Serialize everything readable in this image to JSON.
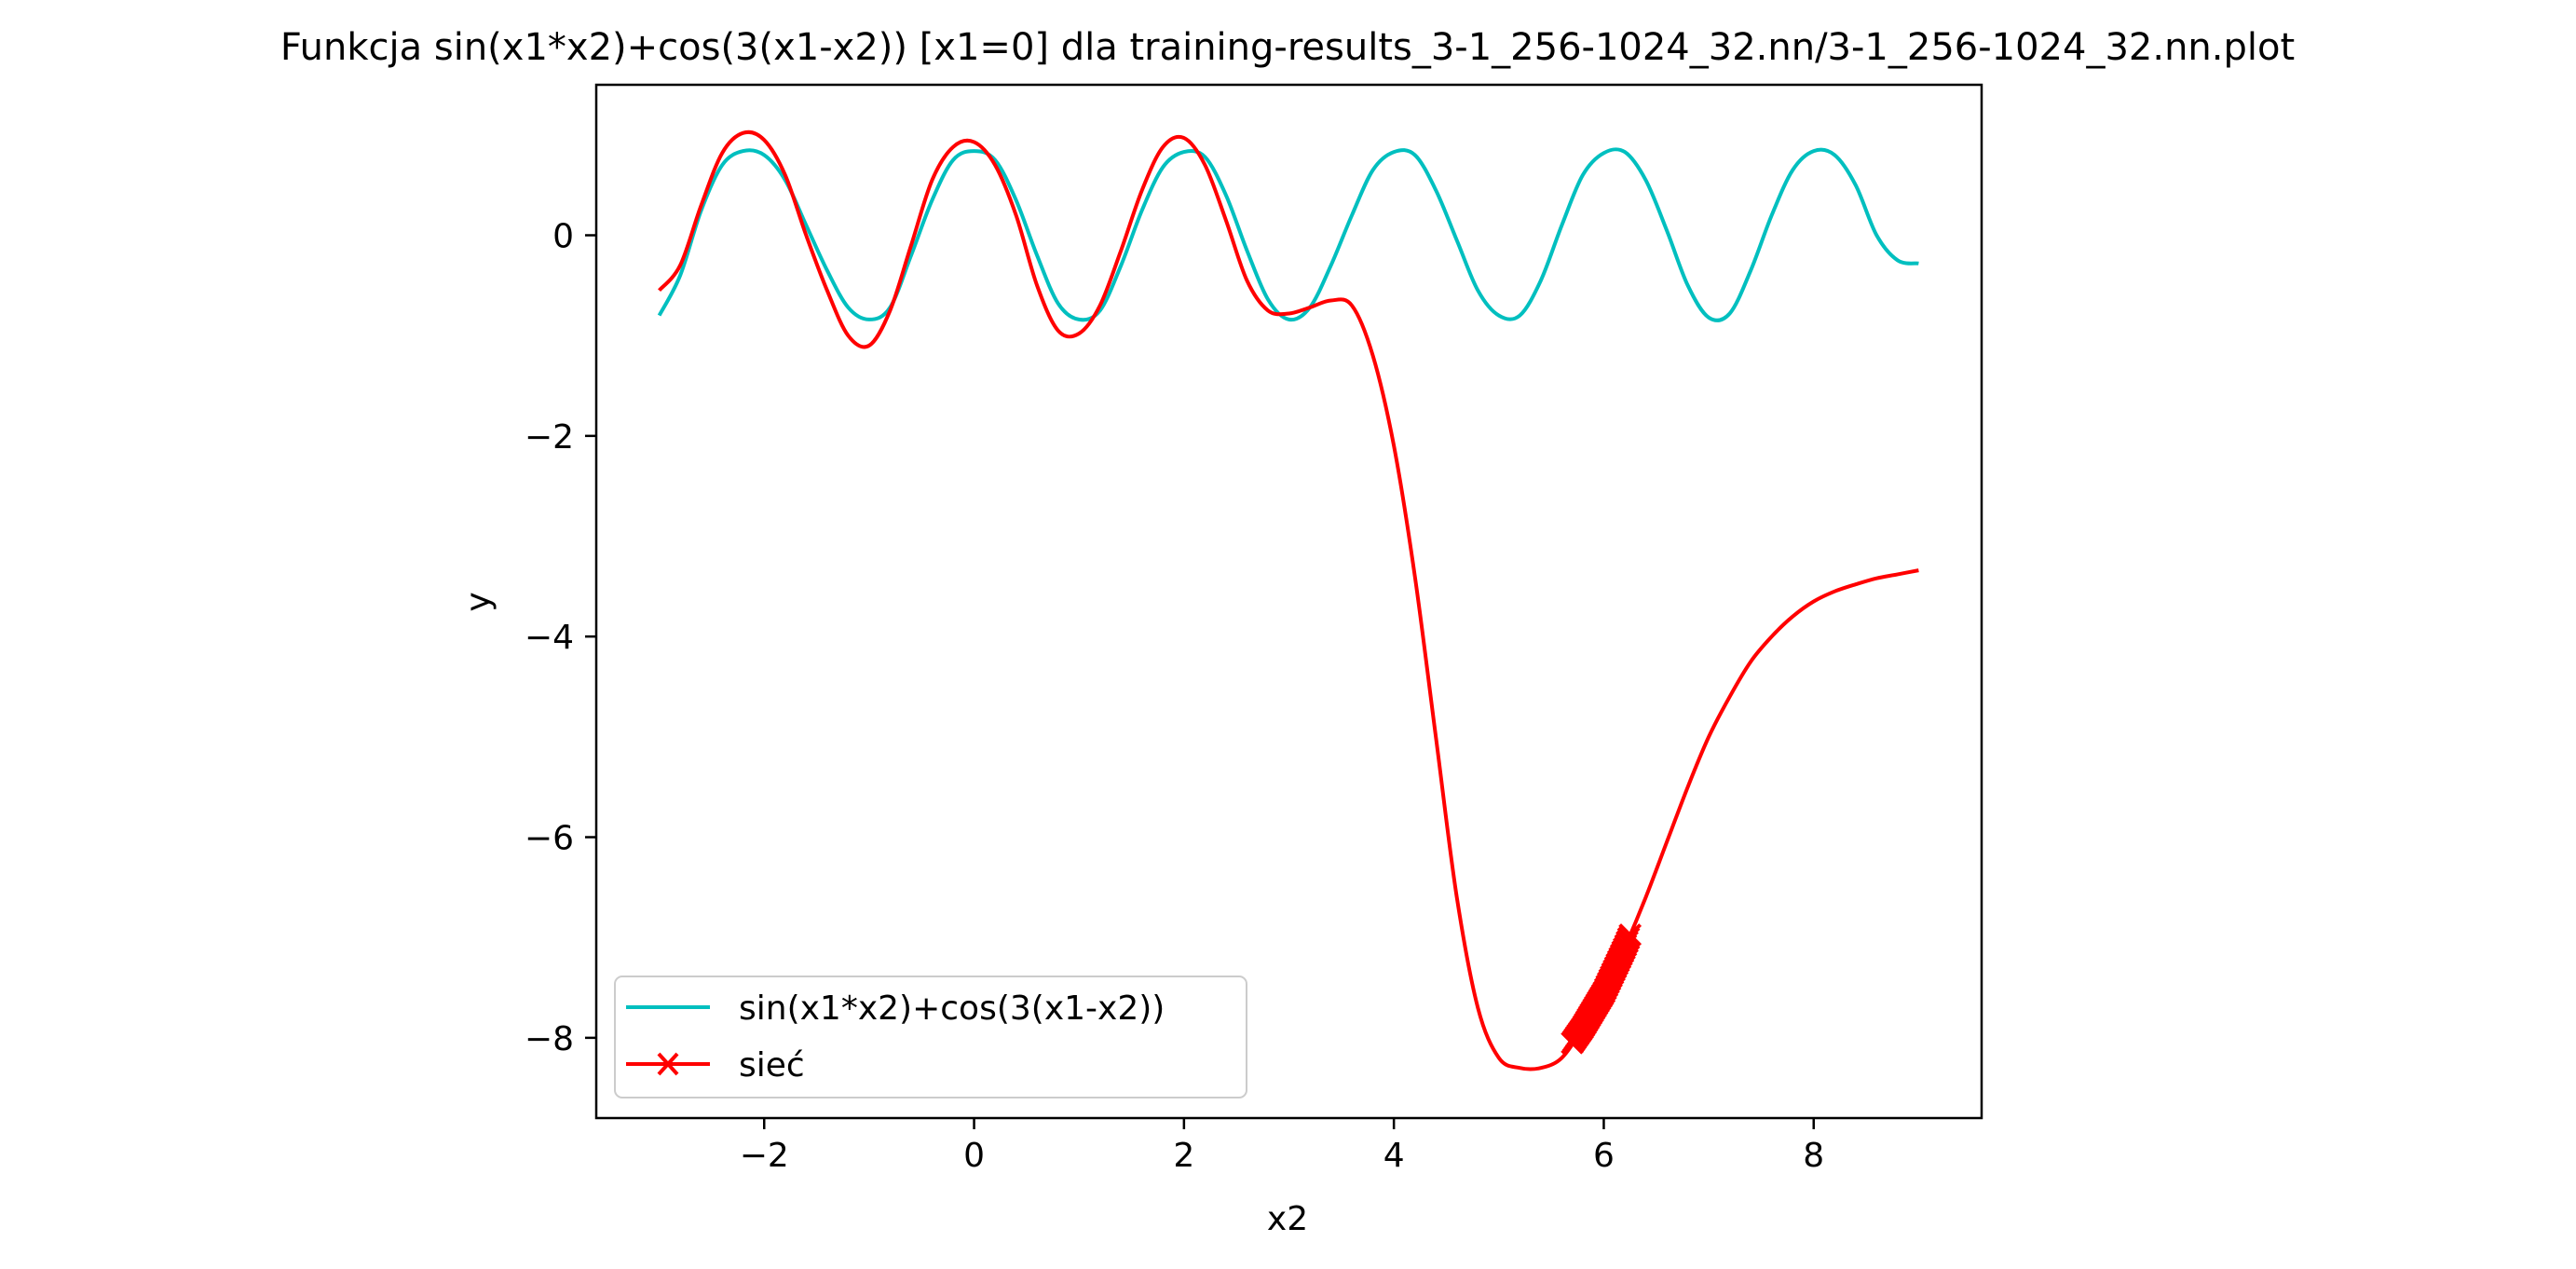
{
  "chart_data": {
    "type": "line",
    "title": "Funkcja sin(x1*x2)+cos(3(x1-x2)) [x1=0] dla training-results_3-1_256-1024_32.nn/3-1_256-1024_32.nn.plot",
    "xlabel": "x2",
    "ylabel": "y",
    "xlim": [
      -3.6,
      9.6
    ],
    "ylim": [
      -8.8,
      1.5
    ],
    "xticks": [
      -2,
      0,
      2,
      4,
      6,
      8
    ],
    "xtick_labels": [
      "−2",
      "0",
      "2",
      "4",
      "6",
      "8"
    ],
    "yticks": [
      0,
      -2,
      -4,
      -6,
      -8
    ],
    "ytick_labels": [
      "0",
      "−2",
      "−4",
      "−6",
      "−8"
    ],
    "grid": false,
    "legend_position": "lower-left",
    "series": [
      {
        "name": "sin(x1*x2)+cos(3(x1-x2))",
        "color": "#00bfbf",
        "marker": "none",
        "x": [
          -3.0,
          -2.8,
          -2.6,
          -2.4,
          -2.2,
          -2.0,
          -1.8,
          -1.6,
          -1.4,
          -1.2,
          -1.0,
          -0.8,
          -0.6,
          -0.4,
          -0.2,
          0.0,
          0.2,
          0.4,
          0.6,
          0.8,
          1.0,
          1.2,
          1.4,
          1.6,
          1.8,
          2.0,
          2.2,
          2.4,
          2.6,
          2.8,
          3.0,
          3.2,
          3.4,
          3.6,
          3.8,
          4.0,
          4.2,
          4.4,
          4.6,
          4.8,
          5.0,
          5.2,
          5.4,
          5.6,
          5.8,
          6.0,
          6.2,
          6.4,
          6.6,
          6.8,
          7.0,
          7.2,
          7.4,
          7.6,
          7.8,
          8.0,
          8.2,
          8.4,
          8.6,
          8.8,
          9.0
        ],
        "y": [
          -0.8,
          -0.4,
          0.25,
          0.7,
          0.84,
          0.8,
          0.55,
          0.1,
          -0.35,
          -0.72,
          -0.84,
          -0.72,
          -0.2,
          0.35,
          0.75,
          0.84,
          0.75,
          0.35,
          -0.2,
          -0.68,
          -0.84,
          -0.75,
          -0.3,
          0.25,
          0.68,
          0.83,
          0.78,
          0.4,
          -0.15,
          -0.64,
          -0.84,
          -0.72,
          -0.3,
          0.2,
          0.65,
          0.83,
          0.8,
          0.45,
          -0.05,
          -0.55,
          -0.8,
          -0.8,
          -0.45,
          0.1,
          0.6,
          0.82,
          0.83,
          0.55,
          0.05,
          -0.5,
          -0.82,
          -0.78,
          -0.35,
          0.2,
          0.65,
          0.84,
          0.8,
          0.5,
          0.0,
          -0.25,
          -0.28
        ]
      },
      {
        "name": "sieć",
        "color": "#ff0000",
        "marker": "x",
        "x": [
          -3.0,
          -2.8,
          -2.6,
          -2.4,
          -2.2,
          -2.0,
          -1.8,
          -1.6,
          -1.4,
          -1.2,
          -1.0,
          -0.8,
          -0.6,
          -0.4,
          -0.2,
          0.0,
          0.2,
          0.4,
          0.6,
          0.8,
          1.0,
          1.2,
          1.4,
          1.6,
          1.8,
          2.0,
          2.2,
          2.4,
          2.6,
          2.8,
          3.0,
          3.2,
          3.4,
          3.6,
          3.8,
          4.0,
          4.2,
          4.4,
          4.6,
          4.8,
          5.0,
          5.2,
          5.4,
          5.6,
          5.8,
          6.0,
          6.2,
          6.4,
          6.6,
          6.8,
          7.0,
          7.2,
          7.4,
          7.6,
          7.8,
          8.0,
          8.2,
          8.4,
          8.6,
          8.8,
          9.0
        ],
        "y": [
          -0.55,
          -0.3,
          0.3,
          0.82,
          1.02,
          0.95,
          0.6,
          0.0,
          -0.55,
          -1.0,
          -1.1,
          -0.75,
          -0.1,
          0.55,
          0.88,
          0.93,
          0.7,
          0.2,
          -0.5,
          -0.95,
          -0.98,
          -0.7,
          -0.15,
          0.45,
          0.88,
          0.97,
          0.7,
          0.15,
          -0.45,
          -0.75,
          -0.78,
          -0.72,
          -0.65,
          -0.7,
          -1.2,
          -2.1,
          -3.4,
          -5.0,
          -6.6,
          -7.7,
          -8.2,
          -8.3,
          -8.3,
          -8.2,
          -7.9,
          -7.55,
          -7.1,
          -6.6,
          -6.05,
          -5.5,
          -5.0,
          -4.6,
          -4.25,
          -4.0,
          -3.8,
          -3.65,
          -3.55,
          -3.48,
          -3.42,
          -3.38,
          -3.34
        ],
        "marker_x_range": [
          5.7,
          6.25
        ]
      }
    ]
  }
}
